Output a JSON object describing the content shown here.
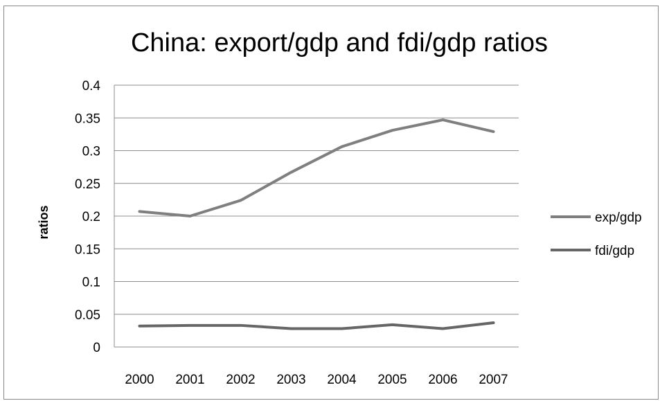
{
  "chart_data": {
    "type": "line",
    "title": "China: export/gdp and  fdi/gdp ratios",
    "xlabel": "",
    "ylabel": "ratios",
    "categories": [
      "2000",
      "2001",
      "2002",
      "2003",
      "2004",
      "2005",
      "2006",
      "2007"
    ],
    "ylim": [
      0,
      0.4
    ],
    "yticks": [
      "0",
      "0.05",
      "0.1",
      "0.15",
      "0.2",
      "0.25",
      "0.3",
      "0.35",
      "0.4"
    ],
    "grid": "horizontal",
    "legend_position": "right",
    "series": [
      {
        "name": "exp/gdp",
        "values": [
          0.207,
          0.2,
          0.224,
          0.267,
          0.306,
          0.331,
          0.347,
          0.329
        ],
        "color": "#7f7f7f"
      },
      {
        "name": "fdi/gdp",
        "values": [
          0.032,
          0.033,
          0.033,
          0.028,
          0.028,
          0.034,
          0.028,
          0.037
        ],
        "color": "#666666"
      }
    ]
  }
}
